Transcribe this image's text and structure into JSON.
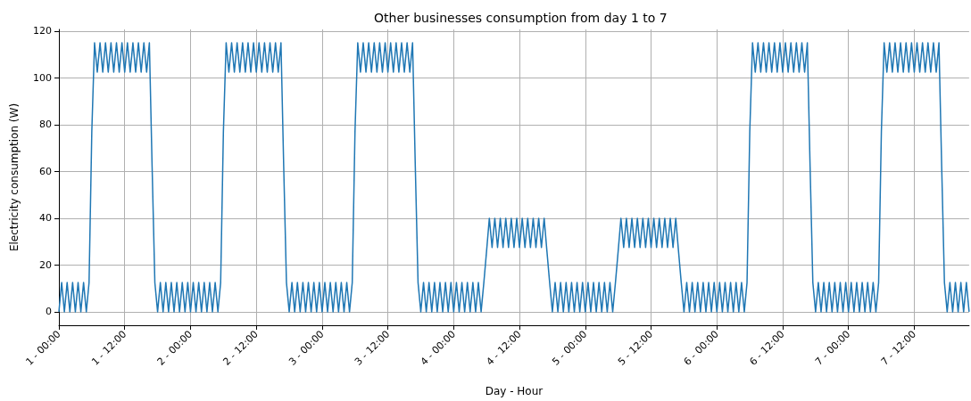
{
  "chart_data": {
    "type": "line",
    "title": "Other businesses consumption from day 1 to 7",
    "xlabel": "Day - Hour",
    "ylabel": "Electricity consumption (W)",
    "ylim": [
      -5.75,
      120.75
    ],
    "yticks": [
      0,
      20,
      40,
      60,
      80,
      100,
      120
    ],
    "grid": true,
    "marker": "none",
    "line_style": "solid",
    "categories": [
      "1 - 00:00",
      null,
      null,
      null,
      null,
      null,
      null,
      null,
      null,
      null,
      null,
      null,
      null,
      null,
      null,
      null,
      null,
      null,
      null,
      null,
      null,
      null,
      null,
      null,
      "1 - 12:00",
      null,
      null,
      null,
      null,
      null,
      null,
      null,
      null,
      null,
      null,
      null,
      null,
      null,
      null,
      null,
      null,
      null,
      null,
      null,
      null,
      null,
      null,
      null,
      "2 - 00:00",
      null,
      null,
      null,
      null,
      null,
      null,
      null,
      null,
      null,
      null,
      null,
      null,
      null,
      null,
      null,
      null,
      null,
      null,
      null,
      null,
      null,
      null,
      null,
      "2 - 12:00",
      null,
      null,
      null,
      null,
      null,
      null,
      null,
      null,
      null,
      null,
      null,
      null,
      null,
      null,
      null,
      null,
      null,
      null,
      null,
      null,
      null,
      null,
      null,
      "3 - 00:00",
      null,
      null,
      null,
      null,
      null,
      null,
      null,
      null,
      null,
      null,
      null,
      null,
      null,
      null,
      null,
      null,
      null,
      null,
      null,
      null,
      null,
      null,
      null,
      "3 - 12:00",
      null,
      null,
      null,
      null,
      null,
      null,
      null,
      null,
      null,
      null,
      null,
      null,
      null,
      null,
      null,
      null,
      null,
      null,
      null,
      null,
      null,
      null,
      null,
      "4 - 00:00",
      null,
      null,
      null,
      null,
      null,
      null,
      null,
      null,
      null,
      null,
      null,
      null,
      null,
      null,
      null,
      null,
      null,
      null,
      null,
      null,
      null,
      null,
      null,
      "4 - 12:00",
      null,
      null,
      null,
      null,
      null,
      null,
      null,
      null,
      null,
      null,
      null,
      null,
      null,
      null,
      null,
      null,
      null,
      null,
      null,
      null,
      null,
      null,
      null,
      "5 - 00:00",
      null,
      null,
      null,
      null,
      null,
      null,
      null,
      null,
      null,
      null,
      null,
      null,
      null,
      null,
      null,
      null,
      null,
      null,
      null,
      null,
      null,
      null,
      null,
      "5 - 12:00",
      null,
      null,
      null,
      null,
      null,
      null,
      null,
      null,
      null,
      null,
      null,
      null,
      null,
      null,
      null,
      null,
      null,
      null,
      null,
      null,
      null,
      null,
      null,
      "6 - 00:00",
      null,
      null,
      null,
      null,
      null,
      null,
      null,
      null,
      null,
      null,
      null,
      null,
      null,
      null,
      null,
      null,
      null,
      null,
      null,
      null,
      null,
      null,
      null,
      "6 - 12:00",
      null,
      null,
      null,
      null,
      null,
      null,
      null,
      null,
      null,
      null,
      null,
      null,
      null,
      null,
      null,
      null,
      null,
      null,
      null,
      null,
      null,
      null,
      null,
      "7 - 00:00",
      null,
      null,
      null,
      null,
      null,
      null,
      null,
      null,
      null,
      null,
      null,
      null,
      null,
      null,
      null,
      null,
      null,
      null,
      null,
      null,
      null,
      null,
      null,
      "7 - 12:00",
      null,
      null,
      null,
      null,
      null,
      null,
      null,
      null,
      null,
      null,
      null,
      null,
      null,
      null,
      null,
      null,
      null,
      null,
      null,
      null
    ],
    "series": [
      {
        "color": "#1f77b4",
        "values": [
          0,
          12.5,
          0,
          12.5,
          0,
          12.5,
          0,
          12.5,
          0,
          12.5,
          0,
          12.5,
          77,
          115,
          102.5,
          115,
          102.5,
          115,
          102.5,
          115,
          102.5,
          115,
          102.5,
          115,
          102.5,
          115,
          102.5,
          115,
          102.5,
          115,
          102.5,
          115,
          102.5,
          115,
          62,
          12.5,
          0,
          12.5,
          0,
          12.5,
          0,
          12.5,
          0,
          12.5,
          0,
          12.5,
          0,
          12.5,
          0,
          12.5,
          0,
          12.5,
          0,
          12.5,
          0,
          12.5,
          0,
          12.5,
          0,
          12.5,
          77,
          115,
          102.5,
          115,
          102.5,
          115,
          102.5,
          115,
          102.5,
          115,
          102.5,
          115,
          102.5,
          115,
          102.5,
          115,
          102.5,
          115,
          102.5,
          115,
          102.5,
          115,
          62,
          12.5,
          0,
          12.5,
          0,
          12.5,
          0,
          12.5,
          0,
          12.5,
          0,
          12.5,
          0,
          12.5,
          0,
          12.5,
          0,
          12.5,
          0,
          12.5,
          0,
          12.5,
          0,
          12.5,
          0,
          12.5,
          77,
          115,
          102.5,
          115,
          102.5,
          115,
          102.5,
          115,
          102.5,
          115,
          102.5,
          115,
          102.5,
          115,
          102.5,
          115,
          102.5,
          115,
          102.5,
          115,
          102.5,
          115,
          62,
          12.5,
          0,
          12.5,
          0,
          12.5,
          0,
          12.5,
          0,
          12.5,
          0,
          12.5,
          0,
          12.5,
          0,
          12.5,
          0,
          12.5,
          0,
          12.5,
          0,
          12.5,
          0,
          12.5,
          0,
          12.5,
          26,
          40,
          27.5,
          40,
          27.5,
          40,
          27.5,
          40,
          27.5,
          40,
          27.5,
          40,
          27.5,
          40,
          27.5,
          40,
          27.5,
          40,
          27.5,
          40,
          27.5,
          40,
          26,
          12.5,
          0,
          12.5,
          0,
          12.5,
          0,
          12.5,
          0,
          12.5,
          0,
          12.5,
          0,
          12.5,
          0,
          12.5,
          0,
          12.5,
          0,
          12.5,
          0,
          12.5,
          0,
          12.5,
          0,
          12.5,
          26,
          40,
          27.5,
          40,
          27.5,
          40,
          27.5,
          40,
          27.5,
          40,
          27.5,
          40,
          27.5,
          40,
          27.5,
          40,
          27.5,
          40,
          27.5,
          40,
          27.5,
          40,
          26,
          12.5,
          0,
          12.5,
          0,
          12.5,
          0,
          12.5,
          0,
          12.5,
          0,
          12.5,
          0,
          12.5,
          0,
          12.5,
          0,
          12.5,
          0,
          12.5,
          0,
          12.5,
          0,
          12.5,
          0,
          12.5,
          77,
          115,
          102.5,
          115,
          102.5,
          115,
          102.5,
          115,
          102.5,
          115,
          102.5,
          115,
          102.5,
          115,
          102.5,
          115,
          102.5,
          115,
          102.5,
          115,
          102.5,
          115,
          62,
          12.5,
          0,
          12.5,
          0,
          12.5,
          0,
          12.5,
          0,
          12.5,
          0,
          12.5,
          0,
          12.5,
          0,
          12.5,
          0,
          12.5,
          0,
          12.5,
          0,
          12.5,
          0,
          12.5,
          0,
          12.5,
          77,
          115,
          102.5,
          115,
          102.5,
          115,
          102.5,
          115,
          102.5,
          115,
          102.5,
          115,
          102.5,
          115,
          102.5,
          115,
          102.5,
          115,
          102.5,
          115,
          102.5,
          115,
          62,
          12.5,
          0,
          12.5,
          0,
          12.5,
          0,
          12.5,
          0,
          12.5,
          0
        ]
      }
    ]
  }
}
